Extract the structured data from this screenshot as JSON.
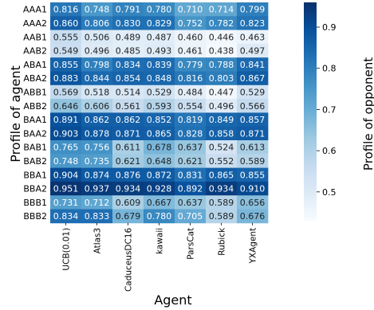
{
  "chart_data": {
    "type": "heatmap",
    "xlabel": "Agent",
    "ylabel": "Profile of agent",
    "colorbar_label": "Profile of opponent",
    "columns": [
      "UCB(0.01)",
      "Atlas3",
      "CaduceusDC16",
      "kawaii",
      "ParsCat",
      "Rubick",
      "YXAgent"
    ],
    "rows": [
      "AAA1",
      "AAA2",
      "AAB1",
      "AAB2",
      "ABA1",
      "ABA2",
      "ABB1",
      "ABB2",
      "BAA1",
      "BAA2",
      "BAB1",
      "BAB2",
      "BBA1",
      "BBA2",
      "BBB1",
      "BBB2"
    ],
    "values": [
      [
        0.816,
        0.748,
        0.791,
        0.78,
        0.71,
        0.714,
        0.799
      ],
      [
        0.86,
        0.806,
        0.83,
        0.829,
        0.752,
        0.782,
        0.823
      ],
      [
        0.555,
        0.506,
        0.489,
        0.487,
        0.46,
        0.446,
        0.463
      ],
      [
        0.549,
        0.496,
        0.485,
        0.493,
        0.461,
        0.438,
        0.497
      ],
      [
        0.855,
        0.798,
        0.834,
        0.839,
        0.779,
        0.788,
        0.841
      ],
      [
        0.883,
        0.844,
        0.854,
        0.848,
        0.816,
        0.803,
        0.867
      ],
      [
        0.569,
        0.518,
        0.514,
        0.529,
        0.484,
        0.447,
        0.529
      ],
      [
        0.646,
        0.606,
        0.561,
        0.593,
        0.554,
        0.496,
        0.566
      ],
      [
        0.891,
        0.862,
        0.862,
        0.852,
        0.819,
        0.849,
        0.857
      ],
      [
        0.903,
        0.878,
        0.871,
        0.865,
        0.828,
        0.858,
        0.871
      ],
      [
        0.765,
        0.756,
        0.611,
        0.678,
        0.637,
        0.524,
        0.613
      ],
      [
        0.748,
        0.735,
        0.621,
        0.648,
        0.621,
        0.552,
        0.589
      ],
      [
        0.904,
        0.874,
        0.876,
        0.872,
        0.831,
        0.865,
        0.855
      ],
      [
        0.951,
        0.937,
        0.934,
        0.928,
        0.892,
        0.934,
        0.91
      ],
      [
        0.731,
        0.712,
        0.609,
        0.667,
        0.637,
        0.589,
        0.656
      ],
      [
        0.834,
        0.833,
        0.679,
        0.78,
        0.705,
        0.589,
        0.676
      ]
    ],
    "colorbar_range": [
      0.43,
      0.96
    ],
    "colorbar_ticks": [
      "0.5",
      "0.6",
      "0.7",
      "0.8",
      "0.9"
    ],
    "colormap": [
      "#f7fbff",
      "#deebf7",
      "#c6dbef",
      "#9ecae1",
      "#6baed6",
      "#4292c6",
      "#2171b5",
      "#08519c",
      "#08306b"
    ],
    "value_format_decimals": 3
  }
}
